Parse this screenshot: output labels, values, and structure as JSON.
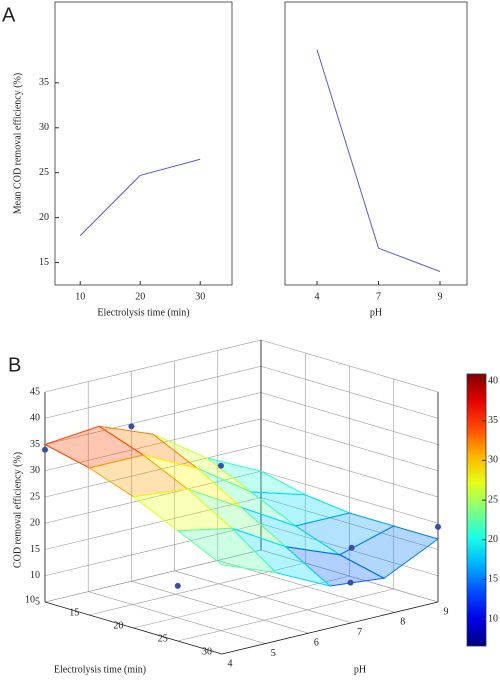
{
  "chart_data": [
    {
      "type": "line",
      "panel": "A",
      "ylabel": "Mean COD removal efficiency (%)",
      "xlabel": "Electrolysis time (min)",
      "x": [
        10,
        20,
        30
      ],
      "values": [
        18,
        24.7,
        26.5
      ],
      "color": "#5a5acc",
      "xlim": [
        5.8,
        35.3
      ],
      "xticks": [
        10,
        20,
        30
      ],
      "ylim": [
        12.5,
        44
      ],
      "yticks": [
        15,
        20,
        25,
        30,
        35
      ]
    },
    {
      "type": "line",
      "xlabel": "pH",
      "categories": [
        "4",
        "7",
        "9"
      ],
      "values": [
        38.7,
        16.6,
        14
      ],
      "color": "#5a5acc",
      "ylim": [
        12.5,
        44
      ]
    },
    {
      "type": "surface3d",
      "panel": "B",
      "xlabel": "Electrolysis time (min)",
      "ylabel": "pH",
      "zlabel": "COD removal efficiency (%)",
      "x": [
        10,
        15,
        20,
        25,
        30
      ],
      "y": [
        4,
        5.25,
        6.5,
        7.75,
        9
      ],
      "z": [
        [
          35,
          36,
          32,
          25,
          20
        ],
        [
          33,
          33,
          28,
          21,
          18
        ],
        [
          30,
          29,
          23,
          17,
          17
        ],
        [
          26,
          24,
          18,
          14,
          17
        ],
        [
          22,
          18,
          13,
          12,
          17
        ]
      ],
      "xlim": [
        10,
        30
      ],
      "xticks": [
        10,
        15,
        20,
        25,
        30
      ],
      "ylim": [
        4,
        9
      ],
      "yticks": [
        4,
        5,
        6,
        7,
        8,
        9
      ],
      "zlim": [
        5,
        45
      ],
      "zticks": [
        5,
        10,
        15,
        20,
        25,
        30,
        35,
        40,
        45
      ],
      "points": {
        "x": [
          10,
          10,
          25,
          25,
          30,
          25,
          30
        ],
        "y": [
          4,
          6,
          5,
          4,
          7,
          8,
          9
        ],
        "z": [
          34,
          34.5,
          36.4,
          15.5,
          19.3,
          8.2,
          19.3
        ],
        "color": "#3a4fa0"
      },
      "colormap": "jet",
      "clim": [
        6.6,
        40.9
      ],
      "cticks": [
        10,
        15,
        20,
        25,
        30,
        35,
        40
      ]
    }
  ]
}
